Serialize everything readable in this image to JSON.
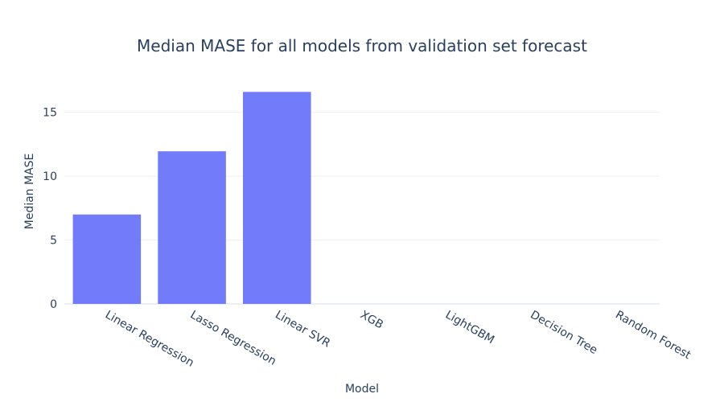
{
  "chart_data": {
    "type": "bar",
    "title": "Median MASE for all models from validation set forecast",
    "xlabel": "Model",
    "ylabel": "Median MASE",
    "categories": [
      "Linear Regression",
      "Lasso Regression",
      "Linear SVR",
      "XGB",
      "LightGBM",
      "Decision Tree",
      "Random Forest"
    ],
    "values": [
      7.0,
      11.95,
      16.6,
      0.0,
      0.0,
      0.0,
      0.0
    ],
    "ylim": [
      0,
      17.5
    ],
    "yticks": [
      0,
      5,
      10,
      15
    ],
    "grid": true,
    "legend": "none",
    "colors": {
      "bar": "#636efa"
    }
  }
}
